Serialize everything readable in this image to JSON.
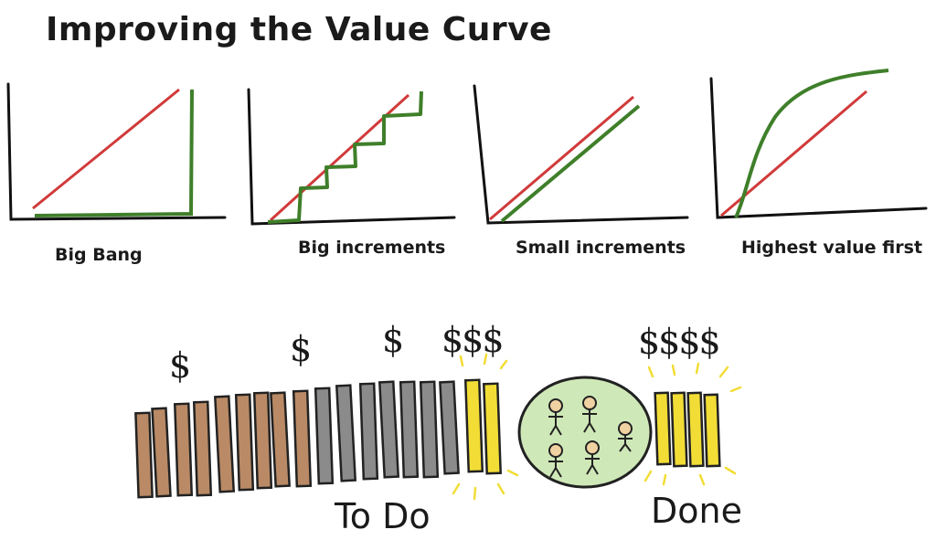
{
  "title": "Improving the Value Curve",
  "panels": [
    {
      "caption": "Big Bang"
    },
    {
      "caption": "Big increments"
    },
    {
      "caption": "Small increments"
    },
    {
      "caption": "Highest value first"
    }
  ],
  "colors": {
    "red_line": "#d13a3a",
    "green_line": "#3f7f2a",
    "brown_card": "#b98a65",
    "gray_card": "#8b8b8b",
    "yellow_card": "#f2dd36",
    "team_circle": "#cfe8b8",
    "person_head": "#f0d2a2"
  },
  "dollars": {
    "d1": "$",
    "d2": "$",
    "d3": "$",
    "d4": "$$$",
    "d5": "$$$$"
  },
  "labels": {
    "todo": "To Do",
    "done": "Done"
  }
}
